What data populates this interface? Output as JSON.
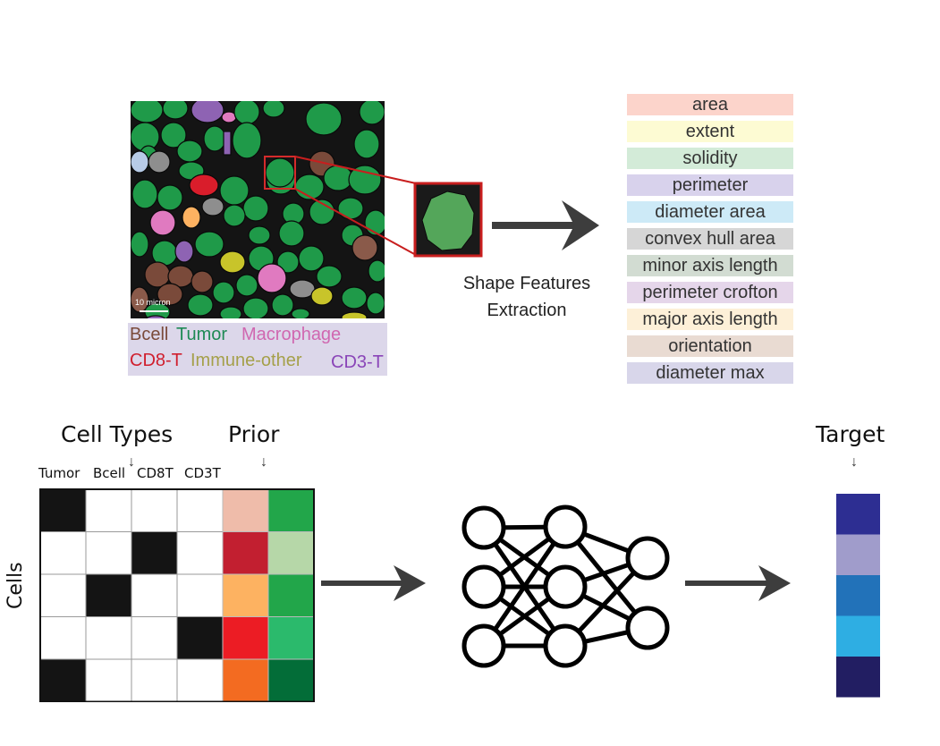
{
  "micrograph": {
    "scale_label": "10 micron"
  },
  "legend": [
    {
      "label": "Bcell",
      "color": "#7a4a3a"
    },
    {
      "label": "Tumor",
      "color": "#1f8a55"
    },
    {
      "label": "Macrophage",
      "color": "#d067b0"
    },
    {
      "label": "CD8-T",
      "color": "#d01f2e"
    },
    {
      "label": "Immune-other",
      "color": "#a5a04a"
    },
    {
      "label": "CD3-T",
      "color": "#8a45b8"
    }
  ],
  "shape_features": {
    "caption_line1": "Shape Features",
    "caption_line2": "Extraction",
    "items": [
      {
        "label": "area",
        "color": "#fcd4cb"
      },
      {
        "label": "extent",
        "color": "#fdfbd3"
      },
      {
        "label": "solidity",
        "color": "#d3ebd8"
      },
      {
        "label": "perimeter",
        "color": "#d8d2ec"
      },
      {
        "label": "diameter area",
        "color": "#cdeaf7"
      },
      {
        "label": "convex hull area",
        "color": "#d6d6d6"
      },
      {
        "label": "minor axis length",
        "color": "#d2dcd2"
      },
      {
        "label": "perimeter crofton",
        "color": "#e5d6ea"
      },
      {
        "label": "major axis length",
        "color": "#fdf0d8"
      },
      {
        "label": "orientation",
        "color": "#e9dbd2"
      },
      {
        "label": "diameter max",
        "color": "#d8d6ea"
      }
    ]
  },
  "input_matrix": {
    "title_cell_types": "Cell Types",
    "title_prior": "Prior",
    "row_axis_label": "Cells",
    "columns": [
      "Tumor",
      "Bcell",
      "CD8T",
      "CD3T"
    ],
    "one_hot": [
      [
        1,
        0,
        0,
        0
      ],
      [
        0,
        0,
        1,
        0
      ],
      [
        0,
        1,
        0,
        0
      ],
      [
        0,
        0,
        0,
        1
      ],
      [
        1,
        0,
        0,
        0
      ]
    ],
    "prior_colors": [
      "#efbcaa",
      "#c21f30",
      "#fdb261",
      "#ec1c24",
      "#f36b21"
    ],
    "extra_colors": [
      "#22a64a",
      "#b6d7a8",
      "#22a64a",
      "#2bba6c",
      "#036d38"
    ]
  },
  "target": {
    "title": "Target",
    "colors": [
      "#2d2e92",
      "#a09ccb",
      "#2272b9",
      "#2eaee3",
      "#221e62"
    ]
  },
  "arrows": {
    "down_glyph": "↓"
  }
}
